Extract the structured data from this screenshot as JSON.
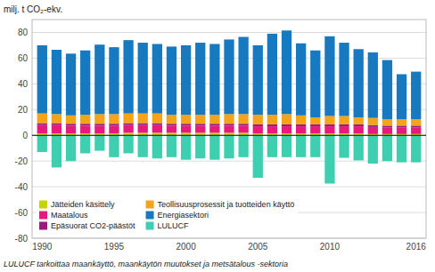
{
  "chart_data": {
    "type": "bar",
    "stacked": true,
    "ylabel": "milj. t CO₂-ekv.",
    "footnote": "LULUCF tarkoittaa maankäyttö, maankäytön muutokset ja metsätalous -sektoria",
    "x": [
      1990,
      1991,
      1992,
      1993,
      1994,
      1995,
      1996,
      1997,
      1998,
      1999,
      2000,
      2001,
      2002,
      2003,
      2004,
      2005,
      2006,
      2007,
      2008,
      2009,
      2010,
      2011,
      2012,
      2013,
      2014,
      2015,
      2016
    ],
    "xlim": [
      1989.3,
      2016.7
    ],
    "xticks": [
      1990,
      1995,
      2000,
      2005,
      2010,
      2016
    ],
    "ylim": [
      -80,
      90
    ],
    "yticks": [
      -80,
      -60,
      -40,
      -20,
      0,
      20,
      40,
      60,
      80
    ],
    "grid": true,
    "legend": "lower left",
    "series": [
      {
        "name": "Jätteiden käsittely",
        "color": "#c8d400",
        "values": [
          1.5,
          1.5,
          1.5,
          1.5,
          1.5,
          1.5,
          2.0,
          2.0,
          2.0,
          2.0,
          2.0,
          2.0,
          2.0,
          2.0,
          2.0,
          1.5,
          1.5,
          1.5,
          1.5,
          1.5,
          1.5,
          1.5,
          1.5,
          1.0,
          1.0,
          1.0,
          1.0
        ]
      },
      {
        "name": "Maatalous",
        "color": "#e8197d",
        "values": [
          6.5,
          6.5,
          6.0,
          6.0,
          6.0,
          6.0,
          6.0,
          6.0,
          6.0,
          5.5,
          5.5,
          5.5,
          5.5,
          5.5,
          5.5,
          5.5,
          5.5,
          5.5,
          5.5,
          5.5,
          5.5,
          5.5,
          5.5,
          5.5,
          5.0,
          5.0,
          5.0
        ]
      },
      {
        "name": "Epäsuorat CO2-päästöt",
        "color": "#9b1a7a",
        "values": [
          1.5,
          1.5,
          1.5,
          1.5,
          1.5,
          1.5,
          1.5,
          1.5,
          1.5,
          1.5,
          1.5,
          1.5,
          1.5,
          1.5,
          1.5,
          1.5,
          1.5,
          1.5,
          1.5,
          1.5,
          1.5,
          1.5,
          1.5,
          1.5,
          1.5,
          1.5,
          1.5
        ]
      },
      {
        "name": "Teollisuusprosessit ja tuotteiden käyttö",
        "color": "#f5a319",
        "values": [
          7.5,
          7.0,
          6.5,
          7.0,
          7.5,
          7.5,
          7.5,
          7.5,
          7.5,
          7.0,
          7.0,
          7.0,
          7.0,
          7.5,
          7.5,
          7.5,
          7.5,
          8.0,
          7.0,
          5.5,
          6.5,
          6.5,
          5.5,
          5.5,
          5.0,
          5.0,
          5.0
        ]
      },
      {
        "name": "Energiasektori",
        "color": "#1779bf",
        "values": [
          53.0,
          50.0,
          48.0,
          50.0,
          54.0,
          52.0,
          57.0,
          55.0,
          54.0,
          53.0,
          54.0,
          56.0,
          55.0,
          58.0,
          60.0,
          54.0,
          63.0,
          65.0,
          56.0,
          52.0,
          62.0,
          57.0,
          53.0,
          51.0,
          46.0,
          35.0,
          37.0
        ]
      },
      {
        "name": "LULUCF",
        "color": "#3ecfb0",
        "values": [
          -13.0,
          -25.0,
          -20.0,
          -14.0,
          -12.0,
          -17.0,
          -14.0,
          -17.0,
          -18.0,
          -17.0,
          -19.0,
          -18.0,
          -19.0,
          -18.0,
          -17.0,
          -33.0,
          -17.0,
          -17.0,
          -17.0,
          -17.0,
          -37.5,
          -17.5,
          -19.5,
          -22.0,
          -20.0,
          -21.0,
          -21.0
        ]
      }
    ]
  }
}
